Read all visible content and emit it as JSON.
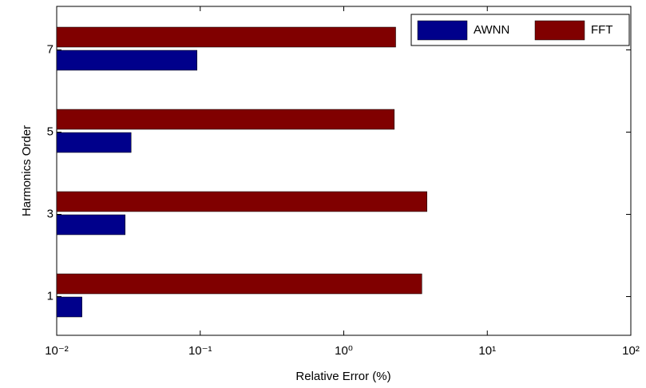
{
  "chart_data": {
    "type": "barh",
    "xlabel": "Relative Error (%)",
    "ylabel": "Harmonics Order",
    "categories": [
      "1",
      "3",
      "5",
      "7"
    ],
    "series": [
      {
        "name": "AWNN",
        "color": "#00008b",
        "values": [
          0.015,
          0.03,
          0.033,
          0.095
        ]
      },
      {
        "name": "FFT",
        "color": "#800000",
        "values": [
          3.5,
          3.8,
          2.25,
          2.3
        ]
      }
    ],
    "xscale": "log",
    "xlim": [
      0.01,
      100
    ],
    "xticks": [
      {
        "value": 0.01,
        "label": "10⁻²"
      },
      {
        "value": 0.1,
        "label": "10⁻¹"
      },
      {
        "value": 1,
        "label": "10⁰"
      },
      {
        "value": 10,
        "label": "10¹"
      },
      {
        "value": 100,
        "label": "10²"
      }
    ],
    "legend": "upper right"
  }
}
